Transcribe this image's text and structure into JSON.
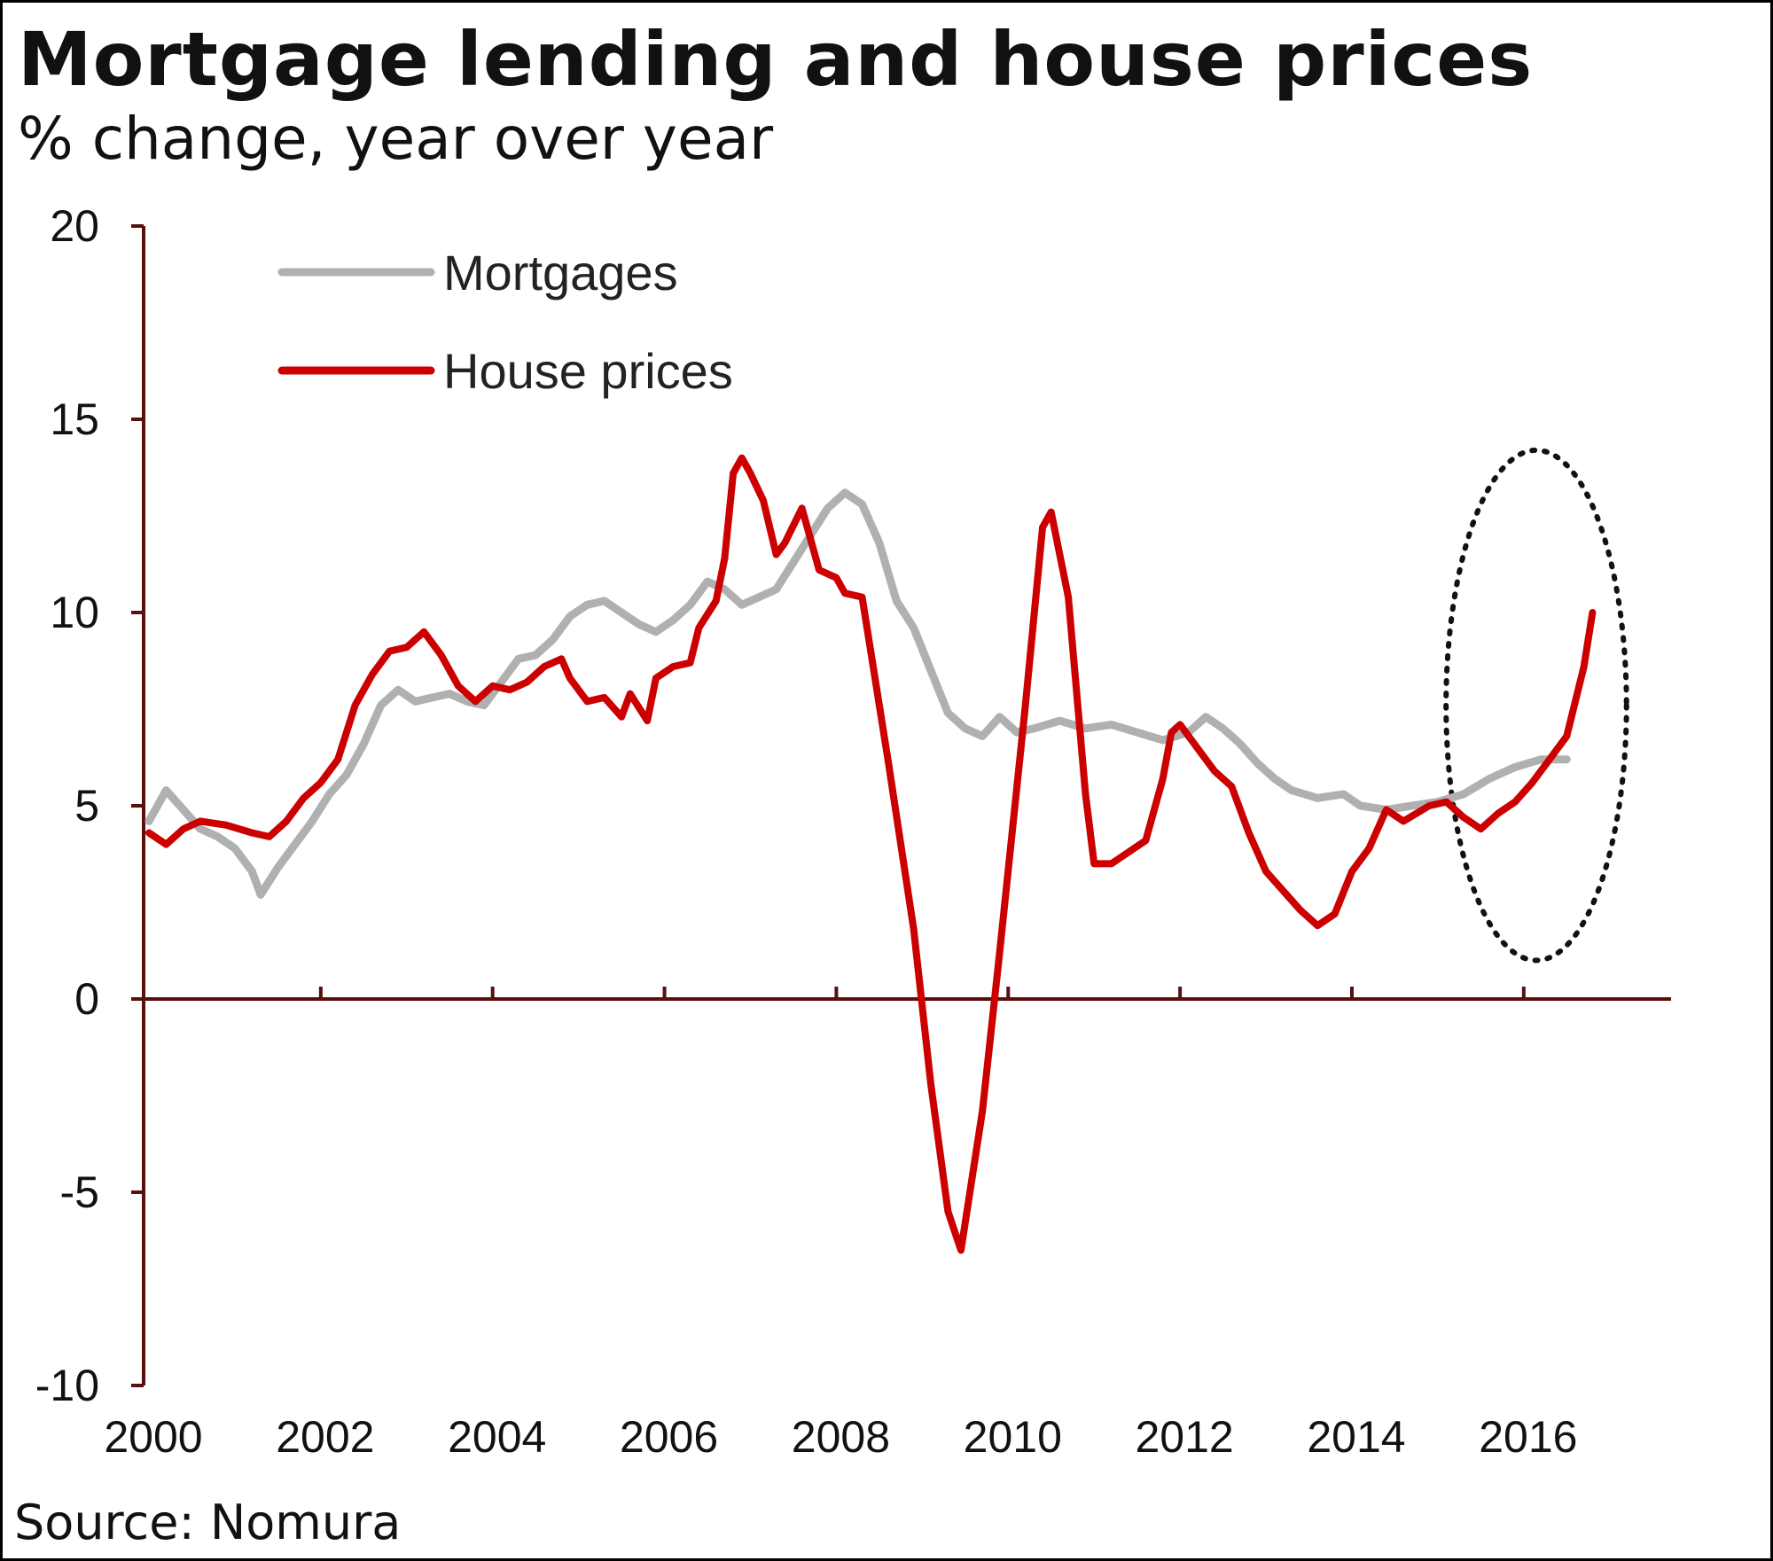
{
  "title": "Mortgage lending and house prices",
  "subtitle": "% change, year over year",
  "source": "Source: Nomura",
  "chart_data": {
    "type": "line",
    "title": "Mortgage lending and house prices",
    "subtitle": "% change, year over year",
    "xlabel": "",
    "ylabel": "",
    "xlim": [
      2000,
      2017.25
    ],
    "ylim": [
      -10,
      20
    ],
    "x_ticks": [
      "2000",
      "2002",
      "2004",
      "2006",
      "2008",
      "2010",
      "2012",
      "2014",
      "2016"
    ],
    "y_ticks": [
      "20",
      "15",
      "10",
      "5",
      "0",
      "-5",
      "-10"
    ],
    "grid": false,
    "legend": "top-left",
    "axis_color": "#5a0f0f",
    "annotation": "dotted ellipse highlighting 2015–2016",
    "series": [
      {
        "name": "Mortgages",
        "color": "#b0b0b0",
        "points": [
          [
            2000.0,
            4.6
          ],
          [
            2000.2,
            5.4
          ],
          [
            2000.4,
            4.9
          ],
          [
            2000.6,
            4.4
          ],
          [
            2000.8,
            4.2
          ],
          [
            2001.0,
            3.9
          ],
          [
            2001.2,
            3.3
          ],
          [
            2001.3,
            2.7
          ],
          [
            2001.5,
            3.4
          ],
          [
            2001.7,
            4.0
          ],
          [
            2001.9,
            4.6
          ],
          [
            2002.1,
            5.3
          ],
          [
            2002.3,
            5.8
          ],
          [
            2002.5,
            6.6
          ],
          [
            2002.7,
            7.6
          ],
          [
            2002.9,
            8.0
          ],
          [
            2003.1,
            7.7
          ],
          [
            2003.3,
            7.8
          ],
          [
            2003.5,
            7.9
          ],
          [
            2003.7,
            7.7
          ],
          [
            2003.9,
            7.6
          ],
          [
            2004.1,
            8.2
          ],
          [
            2004.3,
            8.8
          ],
          [
            2004.5,
            8.9
          ],
          [
            2004.7,
            9.3
          ],
          [
            2004.9,
            9.9
          ],
          [
            2005.1,
            10.2
          ],
          [
            2005.3,
            10.3
          ],
          [
            2005.5,
            10.0
          ],
          [
            2005.7,
            9.7
          ],
          [
            2005.9,
            9.5
          ],
          [
            2006.1,
            9.8
          ],
          [
            2006.3,
            10.2
          ],
          [
            2006.5,
            10.8
          ],
          [
            2006.7,
            10.6
          ],
          [
            2006.9,
            10.2
          ],
          [
            2007.1,
            10.4
          ],
          [
            2007.3,
            10.6
          ],
          [
            2007.5,
            11.3
          ],
          [
            2007.7,
            12.0
          ],
          [
            2007.9,
            12.7
          ],
          [
            2008.1,
            13.1
          ],
          [
            2008.3,
            12.8
          ],
          [
            2008.5,
            11.8
          ],
          [
            2008.7,
            10.3
          ],
          [
            2008.9,
            9.6
          ],
          [
            2009.1,
            8.5
          ],
          [
            2009.3,
            7.4
          ],
          [
            2009.5,
            7.0
          ],
          [
            2009.7,
            6.8
          ],
          [
            2009.9,
            7.3
          ],
          [
            2010.1,
            6.9
          ],
          [
            2010.3,
            7.0
          ],
          [
            2010.6,
            7.2
          ],
          [
            2010.9,
            7.0
          ],
          [
            2011.2,
            7.1
          ],
          [
            2011.5,
            6.9
          ],
          [
            2011.8,
            6.7
          ],
          [
            2012.1,
            6.9
          ],
          [
            2012.3,
            7.3
          ],
          [
            2012.5,
            7.0
          ],
          [
            2012.7,
            6.6
          ],
          [
            2012.9,
            6.1
          ],
          [
            2013.1,
            5.7
          ],
          [
            2013.3,
            5.4
          ],
          [
            2013.6,
            5.2
          ],
          [
            2013.9,
            5.3
          ],
          [
            2014.1,
            5.0
          ],
          [
            2014.4,
            4.9
          ],
          [
            2014.7,
            5.0
          ],
          [
            2015.0,
            5.1
          ],
          [
            2015.3,
            5.3
          ],
          [
            2015.6,
            5.7
          ],
          [
            2015.9,
            6.0
          ],
          [
            2016.2,
            6.2
          ],
          [
            2016.5,
            6.2
          ]
        ]
      },
      {
        "name": "House prices",
        "color": "#cc0000",
        "points": [
          [
            2000.0,
            4.3
          ],
          [
            2000.2,
            4.0
          ],
          [
            2000.4,
            4.4
          ],
          [
            2000.6,
            4.6
          ],
          [
            2000.9,
            4.5
          ],
          [
            2001.2,
            4.3
          ],
          [
            2001.4,
            4.2
          ],
          [
            2001.6,
            4.6
          ],
          [
            2001.8,
            5.2
          ],
          [
            2002.0,
            5.6
          ],
          [
            2002.2,
            6.2
          ],
          [
            2002.4,
            7.6
          ],
          [
            2002.6,
            8.4
          ],
          [
            2002.8,
            9.0
          ],
          [
            2003.0,
            9.1
          ],
          [
            2003.2,
            9.5
          ],
          [
            2003.4,
            8.9
          ],
          [
            2003.6,
            8.1
          ],
          [
            2003.8,
            7.7
          ],
          [
            2004.0,
            8.1
          ],
          [
            2004.2,
            8.0
          ],
          [
            2004.4,
            8.2
          ],
          [
            2004.6,
            8.6
          ],
          [
            2004.8,
            8.8
          ],
          [
            2004.9,
            8.3
          ],
          [
            2005.1,
            7.7
          ],
          [
            2005.3,
            7.8
          ],
          [
            2005.5,
            7.3
          ],
          [
            2005.6,
            7.9
          ],
          [
            2005.8,
            7.2
          ],
          [
            2005.9,
            8.3
          ],
          [
            2006.1,
            8.6
          ],
          [
            2006.3,
            8.7
          ],
          [
            2006.4,
            9.6
          ],
          [
            2006.6,
            10.3
          ],
          [
            2006.7,
            11.4
          ],
          [
            2006.8,
            13.6
          ],
          [
            2006.9,
            14.0
          ],
          [
            2007.0,
            13.6
          ],
          [
            2007.15,
            12.9
          ],
          [
            2007.3,
            11.5
          ],
          [
            2007.4,
            11.8
          ],
          [
            2007.6,
            12.7
          ],
          [
            2007.8,
            11.1
          ],
          [
            2008.0,
            10.9
          ],
          [
            2008.1,
            10.5
          ],
          [
            2008.3,
            10.4
          ],
          [
            2008.6,
            6.2
          ],
          [
            2008.9,
            1.8
          ],
          [
            2009.1,
            -2.2
          ],
          [
            2009.3,
            -5.5
          ],
          [
            2009.45,
            -6.5
          ],
          [
            2009.7,
            -2.9
          ],
          [
            2009.9,
            1.2
          ],
          [
            2010.2,
            7.6
          ],
          [
            2010.4,
            12.2
          ],
          [
            2010.5,
            12.6
          ],
          [
            2010.7,
            10.4
          ],
          [
            2010.9,
            5.3
          ],
          [
            2011.0,
            3.5
          ],
          [
            2011.2,
            3.5
          ],
          [
            2011.4,
            3.8
          ],
          [
            2011.6,
            4.1
          ],
          [
            2011.8,
            5.7
          ],
          [
            2011.9,
            6.9
          ],
          [
            2012.0,
            7.1
          ],
          [
            2012.2,
            6.5
          ],
          [
            2012.4,
            5.9
          ],
          [
            2012.6,
            5.5
          ],
          [
            2012.8,
            4.3
          ],
          [
            2013.0,
            3.3
          ],
          [
            2013.2,
            2.8
          ],
          [
            2013.4,
            2.3
          ],
          [
            2013.6,
            1.9
          ],
          [
            2013.8,
            2.2
          ],
          [
            2014.0,
            3.3
          ],
          [
            2014.2,
            3.9
          ],
          [
            2014.4,
            4.9
          ],
          [
            2014.6,
            4.6
          ],
          [
            2014.9,
            5.0
          ],
          [
            2015.1,
            5.1
          ],
          [
            2015.3,
            4.7
          ],
          [
            2015.5,
            4.4
          ],
          [
            2015.7,
            4.8
          ],
          [
            2015.9,
            5.1
          ],
          [
            2016.1,
            5.6
          ],
          [
            2016.3,
            6.2
          ],
          [
            2016.5,
            6.8
          ],
          [
            2016.7,
            8.6
          ],
          [
            2016.8,
            10.0
          ]
        ]
      }
    ]
  }
}
